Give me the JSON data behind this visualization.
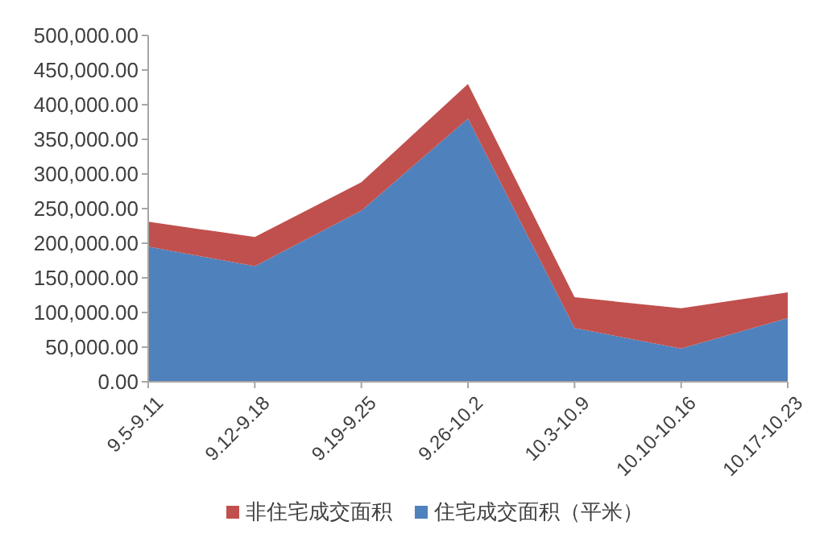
{
  "chart_data": {
    "type": "area",
    "stacked": true,
    "categories": [
      "9.5-9.11",
      "9.12-9.18",
      "9.19-9.25",
      "9.26-10.2",
      "10.3-10.9",
      "10.10-10.16",
      "10.17-10.23"
    ],
    "series": [
      {
        "name": "住宅成交面积（平米）",
        "color": "#4f81bd",
        "values": [
          195000,
          167000,
          247000,
          380000,
          77500,
          48000,
          92000
        ]
      },
      {
        "name": "非住宅成交面积",
        "color": "#c0504d",
        "values": [
          36000,
          42000,
          41000,
          50000,
          44500,
          58000,
          37000
        ]
      }
    ],
    "ylim": [
      0,
      500000
    ],
    "yticks": [
      {
        "value": 0,
        "label": "0.00"
      },
      {
        "value": 50000,
        "label": "50,000.00"
      },
      {
        "value": 100000,
        "label": "100,000.00"
      },
      {
        "value": 150000,
        "label": "150,000.00"
      },
      {
        "value": 200000,
        "label": "200,000.00"
      },
      {
        "value": 250000,
        "label": "250,000.00"
      },
      {
        "value": 300000,
        "label": "300,000.00"
      },
      {
        "value": 350000,
        "label": "350,000.00"
      },
      {
        "value": 400000,
        "label": "400,000.00"
      },
      {
        "value": 450000,
        "label": "450,000.00"
      },
      {
        "value": 500000,
        "label": "500,000.00"
      }
    ],
    "legend": "bottom"
  }
}
